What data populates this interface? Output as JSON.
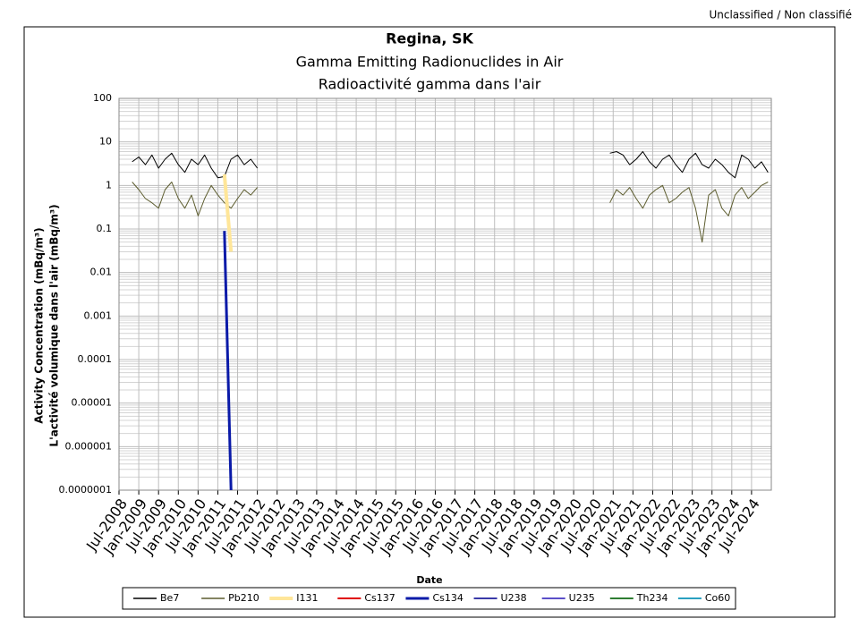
{
  "header": {
    "classification": "Unclassified / Non classifié"
  },
  "chart_data": {
    "type": "line",
    "title": "Regina, SK",
    "subtitle": [
      "Gamma Emitting Radionuclides in Air",
      "Radioactivité gamma dans l'air"
    ],
    "y_label": [
      "Activity Concentration  (mBq/m³)",
      "L'activité volumique dans l'air (mBq/m³)"
    ],
    "x_label": "Date",
    "log_scale": true,
    "grid": true,
    "legend": "bottom",
    "xlim": [
      "Jul-2008",
      "Jan-2025"
    ],
    "xticks": [
      "Jul-2008",
      "Jan-2009",
      "Jul-2009",
      "Jan-2010",
      "Jul-2010",
      "Jan-2011",
      "Jul-2011",
      "Jan-2012",
      "Jul-2012",
      "Jan-2013",
      "Jul-2013",
      "Jan-2014",
      "Jul-2014",
      "Jan-2015",
      "Jul-2015",
      "Jan-2016",
      "Jul-2016",
      "Jan-2017",
      "Jul-2017",
      "Jan-2018",
      "Jul-2018",
      "Jan-2019",
      "Jul-2019",
      "Jan-2020",
      "Jul-2020",
      "Jan-2021",
      "Jul-2021",
      "Jan-2022",
      "Jul-2022",
      "Jan-2023",
      "Jul-2023",
      "Jan-2024",
      "Jul-2024"
    ],
    "ylim": [
      {
        "value": 1e-07,
        "label": "0.0000001"
      },
      100
    ],
    "yticks": [
      {
        "value": 1e-07,
        "label": "0.0000001"
      },
      1e-06,
      1e-05,
      0.0001,
      0.001,
      0.01,
      0.1,
      1,
      10,
      100
    ],
    "x": [
      "Nov-2008",
      "Jan-2009",
      "Mar-2009",
      "May-2009",
      "Jul-2009",
      "Sep-2009",
      "Nov-2009",
      "Jan-2010",
      "Mar-2010",
      "May-2010",
      "Jul-2010",
      "Sep-2010",
      "Nov-2010",
      "Jan-2011",
      "Mar-2011",
      "May-2011",
      "Jul-2011",
      "Sep-2011",
      "Nov-2011",
      "Jan-2012",
      "Jul-2016",
      "Dec-2020",
      "Feb-2021",
      "Apr-2021",
      "Jun-2021",
      "Aug-2021",
      "Oct-2021",
      "Dec-2021",
      "Feb-2022",
      "Apr-2022",
      "Jun-2022",
      "Aug-2022",
      "Oct-2022",
      "Dec-2022",
      "Feb-2023",
      "Apr-2023",
      "Jun-2023",
      "Aug-2023",
      "Oct-2023",
      "Dec-2023",
      "Feb-2024",
      "Apr-2024",
      "Jun-2024",
      "Aug-2024",
      "Oct-2024",
      "Dec-2024"
    ],
    "series": [
      {
        "name": "Be7",
        "color": "#000000",
        "width": 1,
        "values": [
          3.5,
          4.5,
          3,
          5,
          2.5,
          4,
          5.5,
          3,
          2,
          4,
          3,
          5,
          2.5,
          1.5,
          1.6,
          4,
          5,
          3,
          4,
          2.5,
          null,
          5.5,
          6,
          5,
          3,
          4,
          6,
          3.5,
          2.5,
          4,
          5,
          3,
          2,
          4,
          5.5,
          3,
          2.5,
          4,
          3,
          2,
          1.5,
          5,
          4,
          2.5,
          3.5,
          2
        ]
      },
      {
        "name": "Pb210",
        "color": "#5c5c2e",
        "width": 1,
        "values": [
          1.2,
          0.8,
          0.5,
          0.4,
          0.3,
          0.8,
          1.2,
          0.5,
          0.3,
          0.6,
          0.2,
          0.5,
          1,
          0.6,
          0.4,
          0.3,
          0.5,
          0.8,
          0.6,
          0.9,
          null,
          0.4,
          0.8,
          0.6,
          0.9,
          0.5,
          0.3,
          0.6,
          0.8,
          1,
          0.4,
          0.5,
          0.7,
          0.9,
          0.3,
          0.05,
          0.6,
          0.8,
          0.3,
          0.2,
          0.6,
          0.9,
          0.5,
          0.7,
          1,
          1.2
        ]
      },
      {
        "name": "I131",
        "color": "#ffe699",
        "width": 4,
        "values": [
          null,
          null,
          null,
          null,
          null,
          null,
          null,
          null,
          null,
          null,
          null,
          null,
          null,
          null,
          1.8,
          0.03,
          null,
          null,
          null,
          null,
          null,
          null,
          null,
          null,
          null,
          null,
          null,
          null,
          null,
          null,
          null,
          null,
          null,
          null,
          null,
          null,
          null,
          null,
          null,
          null,
          null,
          null,
          null,
          null,
          null,
          null
        ]
      },
      {
        "name": "Cs137",
        "color": "#e00000",
        "width": 2,
        "values": [
          null,
          null,
          null,
          null,
          null,
          null,
          null,
          null,
          null,
          null,
          null,
          null,
          null,
          null,
          null,
          null,
          null,
          null,
          null,
          null,
          null,
          null,
          null,
          null,
          null,
          null,
          null,
          null,
          null,
          null,
          null,
          null,
          null,
          null,
          null,
          null,
          null,
          null,
          null,
          null,
          null,
          null,
          null,
          null,
          null,
          null
        ]
      },
      {
        "name": "Cs134",
        "color": "#0a1aa8",
        "width": 3,
        "values": [
          null,
          null,
          null,
          null,
          null,
          null,
          null,
          null,
          null,
          null,
          null,
          null,
          null,
          null,
          0.09,
          1e-07,
          null,
          null,
          null,
          null,
          null,
          null,
          null,
          null,
          null,
          null,
          null,
          null,
          null,
          null,
          null,
          null,
          null,
          null,
          null,
          null,
          null,
          null,
          null,
          null,
          null,
          null,
          null,
          null,
          null,
          null
        ]
      },
      {
        "name": "U238",
        "color": "#3a3aa8",
        "width": 2,
        "values": [
          null,
          null,
          null,
          null,
          null,
          null,
          null,
          null,
          null,
          null,
          null,
          null,
          null,
          null,
          null,
          null,
          null,
          null,
          null,
          null,
          null,
          null,
          null,
          null,
          null,
          null,
          null,
          null,
          null,
          null,
          null,
          null,
          null,
          null,
          null,
          null,
          null,
          null,
          null,
          null,
          null,
          null,
          null,
          null,
          null,
          null
        ]
      },
      {
        "name": "U235",
        "color": "#5b4fc8",
        "width": 2,
        "values": [
          null,
          null,
          null,
          null,
          null,
          null,
          null,
          null,
          null,
          null,
          null,
          null,
          null,
          null,
          null,
          null,
          null,
          null,
          null,
          null,
          null,
          null,
          null,
          null,
          null,
          null,
          null,
          null,
          null,
          null,
          null,
          null,
          null,
          null,
          null,
          null,
          null,
          null,
          null,
          null,
          null,
          null,
          null,
          null,
          null,
          null
        ]
      },
      {
        "name": "Th234",
        "color": "#2e7d32",
        "width": 2,
        "values": [
          null,
          null,
          null,
          null,
          null,
          null,
          null,
          null,
          null,
          null,
          null,
          null,
          null,
          null,
          null,
          null,
          null,
          null,
          null,
          null,
          null,
          null,
          null,
          null,
          null,
          null,
          null,
          null,
          null,
          null,
          null,
          null,
          null,
          null,
          null,
          null,
          null,
          null,
          null,
          null,
          null,
          null,
          null,
          null,
          null,
          null
        ]
      },
      {
        "name": "Co60",
        "color": "#2aa0c0",
        "width": 2,
        "values": [
          null,
          null,
          null,
          null,
          null,
          null,
          null,
          null,
          null,
          null,
          null,
          null,
          null,
          null,
          null,
          null,
          null,
          null,
          null,
          null,
          null,
          null,
          null,
          null,
          null,
          null,
          null,
          null,
          null,
          null,
          null,
          null,
          null,
          null,
          null,
          null,
          null,
          null,
          null,
          null,
          null,
          null,
          null,
          null,
          null,
          null
        ]
      }
    ]
  }
}
